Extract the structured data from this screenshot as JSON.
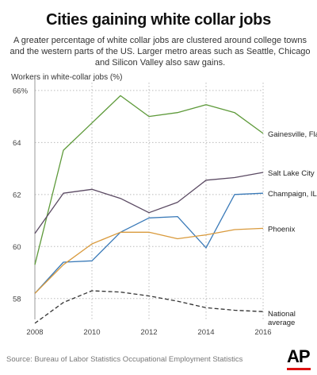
{
  "header": {
    "title": "Cities gaining white collar jobs",
    "subtitle": "A greater percentage of white collar jobs are clustered around college towns and the western parts of the US. Larger metro areas such as Seattle, Chicago and Silicon Valley also saw gains."
  },
  "footer": {
    "source": "Source: Bureau of Labor Statistics Occupational Employment Statistics",
    "logo": "AP"
  },
  "chart_data": {
    "type": "line",
    "ylabel": "Workers in white-collar jobs (%)",
    "xlabel": "",
    "x": [
      2008,
      2009,
      2010,
      2011,
      2012,
      2013,
      2014,
      2015,
      2016
    ],
    "xticks": [
      "2008",
      "2010",
      "2012",
      "2014",
      "2016"
    ],
    "yticks": [
      "58",
      "60",
      "62",
      "64",
      "66%"
    ],
    "ylim": [
      57.2,
      66.3
    ],
    "grid": "dotted",
    "series": [
      {
        "name": "Gainesville, Fla.",
        "color": "#5e9a3a",
        "dash": "solid",
        "values": [
          59.3,
          63.7,
          64.75,
          65.8,
          65.0,
          65.15,
          65.45,
          65.15,
          64.35
        ]
      },
      {
        "name": "Salt Lake City",
        "color": "#5b4a63",
        "dash": "solid",
        "values": [
          60.5,
          62.05,
          62.2,
          61.85,
          61.3,
          61.7,
          62.55,
          62.65,
          62.85
        ]
      },
      {
        "name": "Champaign, IL",
        "color": "#3a7ab8",
        "dash": "solid",
        "values": [
          58.2,
          59.4,
          59.45,
          60.55,
          61.1,
          61.15,
          59.95,
          62.0,
          62.05
        ]
      },
      {
        "name": "Phoenix",
        "color": "#d99a3c",
        "dash": "solid",
        "values": [
          58.2,
          59.3,
          60.1,
          60.55,
          60.55,
          60.3,
          60.45,
          60.65,
          60.7
        ]
      },
      {
        "name": "National average",
        "label_lines": [
          "National",
          "average"
        ],
        "color": "#333333",
        "dash": "dashed",
        "values": [
          57.05,
          57.85,
          58.3,
          58.25,
          58.1,
          57.9,
          57.65,
          57.55,
          57.5
        ]
      }
    ]
  }
}
